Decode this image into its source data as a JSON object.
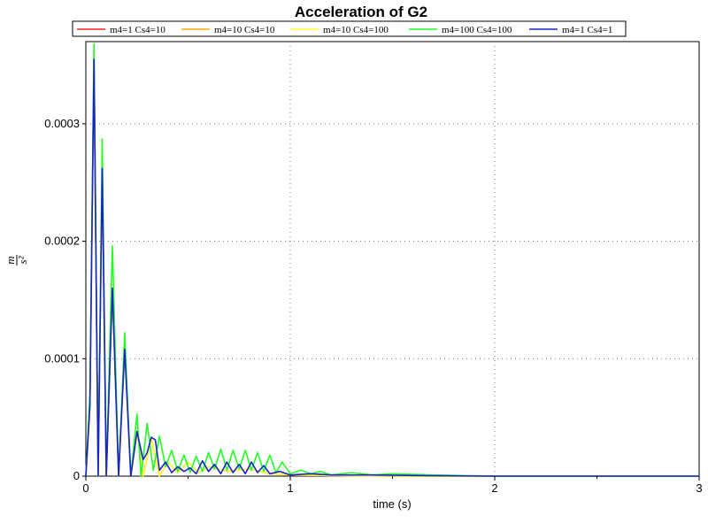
{
  "chart_data": {
    "type": "line",
    "title": "Acceleration of G2",
    "xlabel": "time (s)",
    "ylabel_num": "m",
    "ylabel_den": "s²",
    "xlim": [
      0,
      3
    ],
    "ylim": [
      0,
      0.00037
    ],
    "x_ticks": [
      {
        "value": 0,
        "label": "0"
      },
      {
        "value": 1,
        "label": "1"
      },
      {
        "value": 2,
        "label": "2"
      },
      {
        "value": 3,
        "label": "3"
      }
    ],
    "y_ticks": [
      {
        "value": 0,
        "label": "0"
      },
      {
        "value": 0.0001,
        "label": "0.0001"
      },
      {
        "value": 0.0002,
        "label": "0.0002"
      },
      {
        "value": 0.0003,
        "label": "0.0003"
      }
    ],
    "grid": true,
    "legend_position": "top",
    "series": [
      {
        "name": "m4=1 Cs4=10",
        "color": "#ff2020",
        "x": [
          0,
          0.02,
          0.04,
          0.06,
          0.08,
          0.1,
          0.13,
          0.16,
          0.19,
          0.22,
          0.25,
          0.28,
          0.32,
          0.36,
          0.4,
          0.45,
          0.5,
          0.55,
          0.6,
          0.7,
          0.8,
          0.9,
          1.0,
          1.2,
          1.5,
          2.0,
          3.0
        ],
        "y": [
          0,
          6e-05,
          0.000355,
          0,
          0.000262,
          0,
          0.00016,
          0,
          0.000108,
          0,
          3.8e-05,
          0,
          3.2e-05,
          0,
          1.2e-05,
          3e-06,
          1.2e-05,
          3e-06,
          8e-06,
          4e-06,
          6e-06,
          2e-06,
          1e-06,
          5e-07,
          0,
          0,
          0
        ]
      },
      {
        "name": "m4=10 Cs4=10",
        "color": "#ffa500",
        "x": [
          0,
          0.02,
          0.04,
          0.06,
          0.08,
          0.1,
          0.13,
          0.16,
          0.19,
          0.22,
          0.25,
          0.28,
          0.32,
          0.36,
          0.4,
          0.45,
          0.5,
          0.55,
          0.6,
          0.7,
          0.8,
          0.9,
          1.0,
          1.2,
          1.5,
          2.0,
          3.0
        ],
        "y": [
          0,
          6e-05,
          0.000355,
          0,
          0.000262,
          0,
          0.00016,
          0,
          0.000108,
          0,
          3.8e-05,
          0,
          3.2e-05,
          0,
          1.2e-05,
          3e-06,
          1.2e-05,
          3e-06,
          8e-06,
          4e-06,
          6e-06,
          2e-06,
          1e-06,
          5e-07,
          0,
          0,
          0
        ]
      },
      {
        "name": "m4=10 Cs4=100",
        "color": "#ffff33",
        "x": [
          0,
          0.02,
          0.04,
          0.06,
          0.08,
          0.1,
          0.13,
          0.16,
          0.19,
          0.22,
          0.25,
          0.28,
          0.32,
          0.36,
          0.4,
          0.45,
          0.5,
          0.55,
          0.6,
          0.7,
          0.8,
          0.9,
          1.0,
          1.2,
          1.5,
          2.0,
          3.0
        ],
        "y": [
          0,
          6e-05,
          0.000355,
          0,
          0.000262,
          0,
          0.00016,
          0,
          0.000108,
          0,
          3.8e-05,
          0,
          3.2e-05,
          0,
          1.2e-05,
          3e-06,
          1.2e-05,
          3e-06,
          8e-06,
          4e-06,
          6e-06,
          2e-06,
          1e-06,
          5e-07,
          0,
          0,
          0
        ]
      },
      {
        "name": "m4=100 Cs4=100",
        "color": "#22ff22",
        "x": [
          0,
          0.02,
          0.04,
          0.06,
          0.08,
          0.1,
          0.13,
          0.16,
          0.19,
          0.22,
          0.25,
          0.27,
          0.3,
          0.33,
          0.36,
          0.39,
          0.42,
          0.45,
          0.48,
          0.51,
          0.54,
          0.57,
          0.6,
          0.63,
          0.66,
          0.69,
          0.72,
          0.75,
          0.78,
          0.81,
          0.84,
          0.87,
          0.9,
          0.93,
          0.96,
          1.0,
          1.05,
          1.1,
          1.15,
          1.2,
          1.3,
          1.4,
          1.5,
          1.7,
          2.0,
          3.0
        ],
        "y": [
          0,
          7e-05,
          0.000368,
          0,
          0.000287,
          0,
          0.000196,
          0,
          0.000122,
          0,
          5.3e-05,
          0,
          4.5e-05,
          5e-06,
          3.4e-05,
          8e-06,
          2.2e-05,
          4e-06,
          1.8e-05,
          3e-06,
          1.7e-05,
          4e-06,
          2e-05,
          6e-06,
          2.3e-05,
          5e-06,
          2.2e-05,
          6e-06,
          2.2e-05,
          5e-06,
          2e-05,
          4e-06,
          1.8e-05,
          3e-06,
          1.2e-05,
          2e-06,
          5e-06,
          2e-06,
          4e-06,
          1e-06,
          3e-06,
          1e-06,
          2e-06,
          1e-06,
          0,
          0
        ]
      },
      {
        "name": "m4=1 Cs4=1",
        "color": "#1a22cc",
        "x": [
          0,
          0.02,
          0.04,
          0.06,
          0.08,
          0.1,
          0.13,
          0.16,
          0.19,
          0.22,
          0.25,
          0.28,
          0.3,
          0.32,
          0.34,
          0.36,
          0.39,
          0.42,
          0.45,
          0.48,
          0.51,
          0.54,
          0.57,
          0.6,
          0.63,
          0.66,
          0.69,
          0.72,
          0.75,
          0.78,
          0.81,
          0.84,
          0.87,
          0.9,
          0.95,
          1.0,
          1.1,
          1.2,
          1.4,
          1.6,
          2.0,
          3.0
        ],
        "y": [
          0,
          6e-05,
          0.000355,
          0,
          0.000262,
          0,
          0.00016,
          0,
          0.000108,
          0,
          3.8e-05,
          1.4e-05,
          2e-05,
          3.3e-05,
          3.1e-05,
          5e-06,
          1.2e-05,
          3e-06,
          8e-06,
          4e-06,
          7e-06,
          2e-06,
          1.3e-05,
          4e-06,
          1e-05,
          2e-06,
          1.2e-05,
          3e-06,
          1e-05,
          2e-06,
          1.2e-05,
          3e-06,
          9e-06,
          2e-06,
          4e-06,
          1e-06,
          2e-06,
          1e-06,
          1e-06,
          5e-07,
          0,
          0
        ]
      }
    ]
  }
}
